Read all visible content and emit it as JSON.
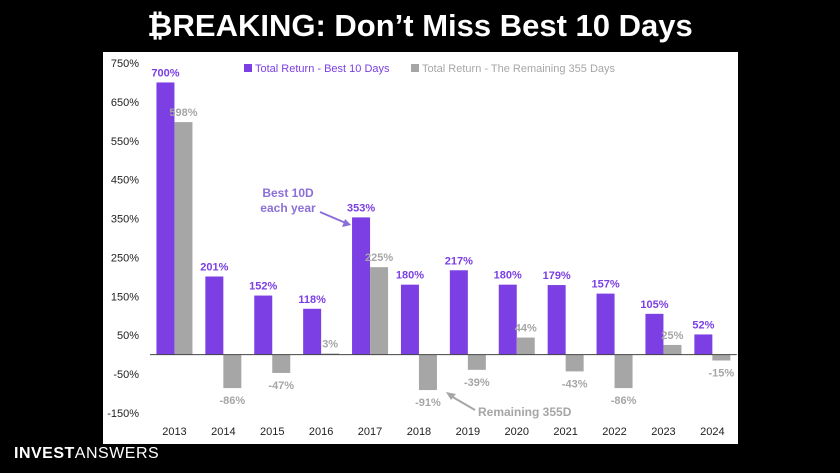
{
  "header": {
    "title_symbol": "₿",
    "title_rest": "REAKING: Don’t Miss Best 10 Days"
  },
  "branding": {
    "part1": "INVEST",
    "part2": "ANSWERS"
  },
  "colors": {
    "best10": "#7B3FE4",
    "remaining": "#A6A6A6",
    "annotation": "#8B6FD8",
    "best_label": "#7B3FE4",
    "remaining_label": "#A6A6A6"
  },
  "chart_data": {
    "type": "bar",
    "categories": [
      "2013",
      "2014",
      "2015",
      "2016",
      "2017",
      "2018",
      "2019",
      "2020",
      "2021",
      "2022",
      "2023",
      "2024"
    ],
    "series": [
      {
        "name": "Total Return - Best 10 Days",
        "values": [
          700,
          201,
          152,
          118,
          353,
          180,
          217,
          180,
          179,
          157,
          105,
          52
        ],
        "labels": [
          "700%",
          "201%",
          "152%",
          "118%",
          "353%",
          "180%",
          "217%",
          "180%",
          "179%",
          "157%",
          "105%",
          "52%"
        ]
      },
      {
        "name": "Total Return - The Remaining 355 Days",
        "values": [
          598,
          -86,
          -47,
          3,
          225,
          -91,
          -39,
          44,
          -43,
          -86,
          25,
          -15
        ],
        "labels": [
          "598%",
          "-86%",
          "-47%",
          "3%",
          "225%",
          "-91%",
          "-39%",
          "44%",
          "-43%",
          "-86%",
          "25%",
          "-15%"
        ]
      }
    ],
    "yticks": [
      "750%",
      "650%",
      "550%",
      "450%",
      "350%",
      "250%",
      "150%",
      "50%",
      "-50%",
      "-150%"
    ],
    "ytick_values": [
      750,
      650,
      550,
      450,
      350,
      250,
      150,
      50,
      -50,
      -150
    ],
    "ylim": [
      -150,
      750
    ],
    "legend_position": "top",
    "grid": false,
    "annotations": [
      {
        "text_lines": [
          "Best 10D",
          "each year"
        ],
        "target": "2017 best 10 days bar"
      },
      {
        "text": "Remaining 355D",
        "target": "2018 remaining days bar"
      }
    ]
  }
}
